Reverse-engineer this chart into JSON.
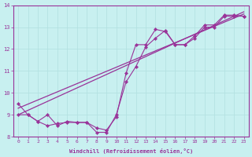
{
  "xlabel": "Windchill (Refroidissement éolien,°C)",
  "background_color": "#c8f0f0",
  "grid_color": "#b0e0e0",
  "line_color": "#993399",
  "xlim": [
    -0.5,
    23.5
  ],
  "ylim": [
    8,
    14
  ],
  "yticks": [
    8,
    9,
    10,
    11,
    12,
    13,
    14
  ],
  "xticks": [
    0,
    1,
    2,
    3,
    4,
    5,
    6,
    7,
    8,
    9,
    10,
    11,
    12,
    13,
    14,
    15,
    16,
    17,
    18,
    19,
    20,
    21,
    22,
    23
  ],
  "series1_x": [
    0,
    1,
    2,
    3,
    4,
    5,
    6,
    7,
    8,
    9,
    10,
    11,
    12,
    13,
    14,
    15,
    16,
    17,
    18,
    19,
    20,
    21,
    22,
    23
  ],
  "series1_y": [
    9.5,
    9.0,
    8.7,
    9.0,
    8.5,
    8.7,
    8.65,
    8.65,
    8.4,
    8.3,
    8.9,
    10.9,
    12.2,
    12.2,
    12.9,
    12.8,
    12.2,
    12.2,
    12.5,
    13.0,
    13.0,
    13.5,
    13.5,
    13.5
  ],
  "series2_x": [
    0,
    1,
    2,
    3,
    4,
    5,
    6,
    7,
    8,
    9,
    10,
    11,
    12,
    13,
    14,
    15,
    16,
    17,
    18,
    19,
    20,
    21,
    22,
    23
  ],
  "series2_y": [
    9.0,
    9.0,
    8.7,
    8.5,
    8.6,
    8.65,
    8.65,
    8.65,
    8.2,
    8.2,
    9.0,
    10.5,
    11.2,
    12.1,
    12.5,
    12.85,
    12.2,
    12.2,
    12.6,
    13.1,
    13.1,
    13.55,
    13.55,
    13.5
  ],
  "regline_x": [
    0,
    23
  ],
  "regline_y": [
    9.0,
    13.7
  ],
  "regline2_x": [
    0,
    23
  ],
  "regline2_y": [
    9.3,
    13.6
  ]
}
